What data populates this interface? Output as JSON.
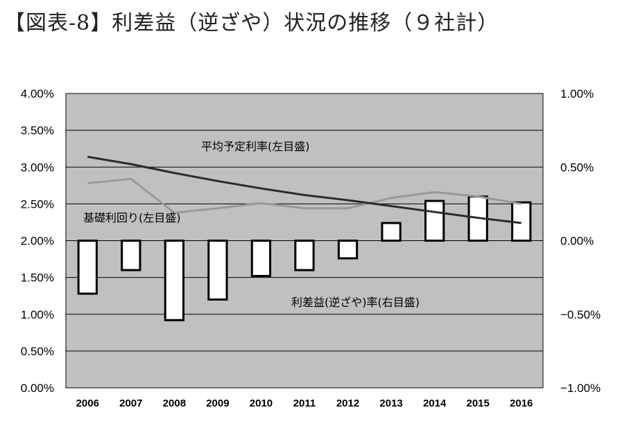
{
  "chart_data": {
    "type": "bar",
    "title": "【図表-8】利差益（逆ざや）状況の推移（９社計）",
    "categories": [
      "2006",
      "2007",
      "2008",
      "2009",
      "2010",
      "2011",
      "2012",
      "2013",
      "2014",
      "2015",
      "2016"
    ],
    "left_axis": {
      "ylim": [
        0.0,
        4.0
      ],
      "ticks": [
        "0.00%",
        "0.50%",
        "1.00%",
        "1.50%",
        "2.00%",
        "2.50%",
        "3.00%",
        "3.50%",
        "4.00%"
      ]
    },
    "right_axis": {
      "ylim": [
        -1.0,
        1.0
      ],
      "ticks": [
        "−1.00%",
        "−0.50%",
        "0.00%",
        "0.50%",
        "1.00%"
      ]
    },
    "series": [
      {
        "name": "利差益(逆ざや)率(右目盛)",
        "type": "bar",
        "axis": "right",
        "color": "#ffffff",
        "values": [
          -0.36,
          -0.2,
          -0.54,
          -0.4,
          -0.24,
          -0.2,
          -0.12,
          0.12,
          0.27,
          0.3,
          0.26
        ]
      },
      {
        "name": "平均予定利率(左目盛)",
        "type": "line",
        "axis": "left",
        "color": "#2a2a2a",
        "values": [
          3.14,
          3.04,
          2.92,
          2.81,
          2.71,
          2.62,
          2.55,
          2.47,
          2.39,
          2.31,
          2.24
        ]
      },
      {
        "name": "基礎利回り(左目盛)",
        "type": "line",
        "axis": "left",
        "color": "#999999",
        "values": [
          2.78,
          2.84,
          2.38,
          2.44,
          2.51,
          2.44,
          2.44,
          2.58,
          2.66,
          2.6,
          2.5
        ]
      }
    ],
    "grid": true,
    "plot_background": "#c0c0c0"
  }
}
